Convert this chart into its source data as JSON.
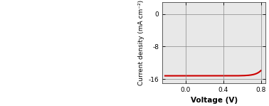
{
  "xlabel": "Voltage (V)",
  "ylabel": "Current density (mA cm⁻²)",
  "xlim": [
    -0.25,
    0.85
  ],
  "ylim": [
    -17,
    3
  ],
  "xticks": [
    0.0,
    0.4,
    0.8
  ],
  "yticks": [
    0,
    -8,
    -16
  ],
  "ytick_labels": [
    "0",
    "-8",
    "-16"
  ],
  "xtick_labels": [
    "0.0",
    "0.4",
    "0.8"
  ],
  "curve_color": "#cc0000",
  "background_color": "#ffffff",
  "plot_bg_color": "#e8e8e8",
  "grid_color": "#888888",
  "figsize": [
    3.78,
    1.49
  ],
  "dpi": 100,
  "voc": 0.8,
  "jsc": -15.2,
  "n_ideality": 2.2,
  "J0": 1e-06,
  "curve_start_v": -0.22
}
